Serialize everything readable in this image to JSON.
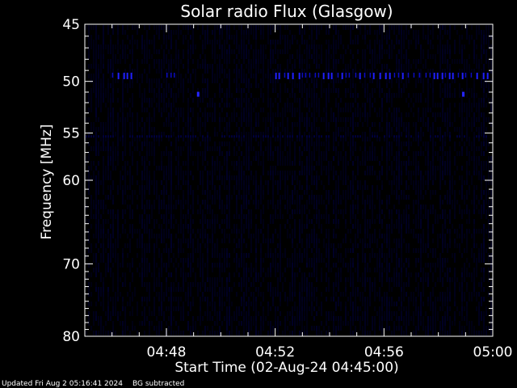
{
  "chart_data": {
    "type": "heatmap",
    "title": "Solar radio Flux (Glasgow)",
    "xlabel": "Start Time (02-Aug-24 04:45:00)",
    "ylabel": "Frequency [MHz]",
    "x_range": [
      "04:45:00",
      "05:00:00"
    ],
    "x_ticks": [
      "04:48",
      "04:52",
      "04:56",
      "05:00"
    ],
    "y_range": [
      45,
      80
    ],
    "y_scale": "log",
    "y_inverted": true,
    "y_ticks": [
      45,
      50,
      55,
      60,
      70,
      80
    ],
    "colormap": [
      "#000000",
      "#00003a",
      "#1414ff"
    ],
    "features": [
      {
        "kind": "band",
        "frequency_mhz": 49.5,
        "segments": [
          [
            "04:46:00",
            "04:46:45"
          ],
          [
            "04:48:00",
            "04:48:20"
          ],
          [
            "04:52:00",
            "04:59:55"
          ]
        ]
      },
      {
        "kind": "spot",
        "frequency_mhz": 51.2,
        "time": "04:49:10"
      },
      {
        "kind": "spot",
        "frequency_mhz": 51.2,
        "time": "04:58:55"
      }
    ],
    "grid": false,
    "legend": "none"
  },
  "footer": {
    "updated": "Updated Fri Aug  2 05:16:41 2024",
    "note": "BG subtracted"
  }
}
